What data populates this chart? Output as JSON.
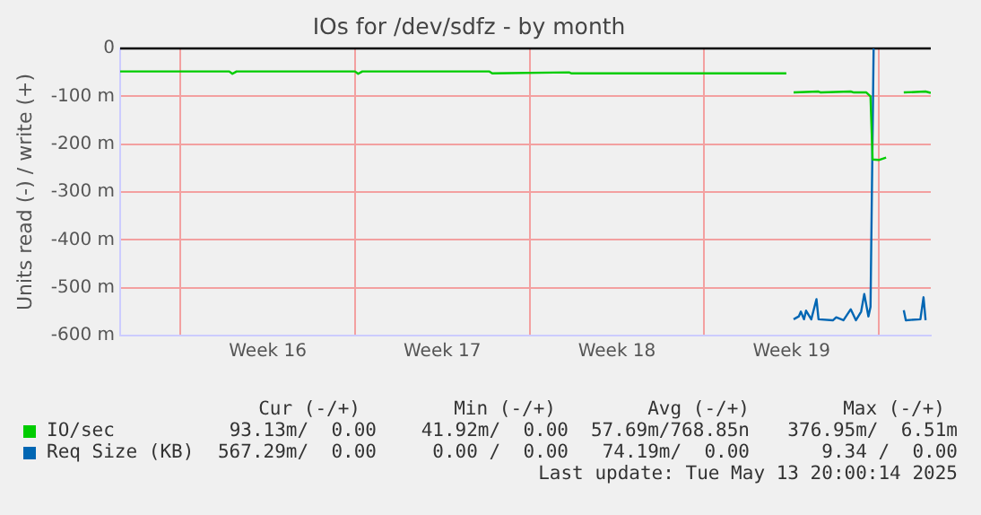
{
  "chart_data": {
    "type": "line",
    "title": "IOs for /dev/sdfz - by month",
    "ylabel": "Units read (-) / write (+)",
    "xlim": [
      "2025-04-11T14:00",
      "2025-05-14T02:00"
    ],
    "xticks": [
      {
        "value": "2025-04-14",
        "label": null
      },
      {
        "value": "2025-04-17T12:00",
        "label": "Week 16"
      },
      {
        "value": "2025-04-21",
        "label": null
      },
      {
        "value": "2025-04-24T12:00",
        "label": "Week 17"
      },
      {
        "value": "2025-04-28",
        "label": null
      },
      {
        "value": "2025-05-01T12:00",
        "label": "Week 18"
      },
      {
        "value": "2025-05-05",
        "label": null
      },
      {
        "value": "2025-05-08T12:00",
        "label": "Week 19"
      },
      {
        "value": "2025-05-12",
        "label": null
      }
    ],
    "ylim": [
      -600,
      0
    ],
    "yticks": [
      {
        "value": -600,
        "label": "-600 m"
      },
      {
        "value": -500,
        "label": "-500 m"
      },
      {
        "value": -400,
        "label": "-400 m"
      },
      {
        "value": -300,
        "label": "-300 m"
      },
      {
        "value": -200,
        "label": "-200 m"
      },
      {
        "value": -100,
        "label": "-100 m"
      },
      0
    ],
    "grid": true,
    "legend": "bottom",
    "marker": "none",
    "line_style": "solid",
    "ref_lines": [
      {
        "axis": "y",
        "value": 0,
        "color": "#000000"
      }
    ],
    "series": [
      {
        "name": "IO/sec",
        "color": "#00cc00",
        "x": [
          "2025-04-11T14:00",
          "2025-04-15T23:00",
          "2025-04-16T02:00",
          "2025-04-16T06:00",
          "2025-04-21T00:00",
          "2025-04-21T03:00",
          "2025-04-21T07:00",
          "2025-04-26T09:00",
          "2025-04-26T12:00",
          "2025-04-29T14:00",
          "2025-04-29T16:00",
          "2025-05-08T07:00",
          "2025-05-08T09:00",
          "2025-05-08T14:00",
          "2025-05-09T14:00",
          "2025-05-09T16:00",
          "2025-05-10T21:00",
          "2025-05-11T00:00",
          "2025-05-11T12:00",
          "2025-05-11T16:00",
          "2025-05-11T18:00",
          "2025-05-12T00:00",
          "2025-05-12T07:00",
          "2025-05-12T14:00",
          "2025-05-13T00:00",
          "2025-05-13T21:00",
          "2025-05-14T02:00"
        ],
        "values": [
          -48,
          -48,
          -53,
          -48,
          -48,
          -53,
          -48,
          -48,
          -52,
          -50,
          -52,
          -52,
          null,
          -92,
          -90,
          -92,
          -90,
          -92,
          -92,
          -100,
          -232,
          -233,
          -228,
          null,
          -92,
          -90,
          -93
        ]
      },
      {
        "name": "Req Size (KB)",
        "color": "#0066b3",
        "x": [
          "2025-05-08T14:00",
          "2025-05-08T19:00",
          "2025-05-08T21:00",
          "2025-05-09T00:00",
          "2025-05-09T02:00",
          "2025-05-09T07:00",
          "2025-05-09T12:00",
          "2025-05-09T14:00",
          "2025-05-10T04:00",
          "2025-05-10T07:00",
          "2025-05-10T14:00",
          "2025-05-10T21:00",
          "2025-05-11T02:00",
          "2025-05-11T07:00",
          "2025-05-11T10:00",
          "2025-05-11T14:00",
          "2025-05-11T16:00",
          "2025-05-11T19:00",
          "2025-05-12T14:00",
          "2025-05-13T00:00",
          "2025-05-13T02:00",
          "2025-05-13T16:00",
          "2025-05-13T19:00",
          "2025-05-13T21:00"
        ],
        "values": [
          -566,
          -560,
          -550,
          -566,
          -548,
          -566,
          -524,
          -566,
          -568,
          -562,
          -568,
          -545,
          -568,
          -550,
          -513,
          -560,
          -540,
          0,
          null,
          -547,
          -568,
          -566,
          -520,
          -568
        ]
      }
    ],
    "annotations": [
      "Cur (-/+)",
      "Min (-/+)",
      "Avg (-/+)",
      "Max (-/+)",
      "93.13m/  0.00",
      "41.92m/  0.00",
      "57.69m/768.85n",
      "376.95m/  6.51m",
      "567.29m/  0.00",
      "0.00 /  0.00",
      "74.19m/  0.00",
      "9.34 /  0.00",
      "Last update: Tue May 13 20:00:14 2025"
    ]
  }
}
